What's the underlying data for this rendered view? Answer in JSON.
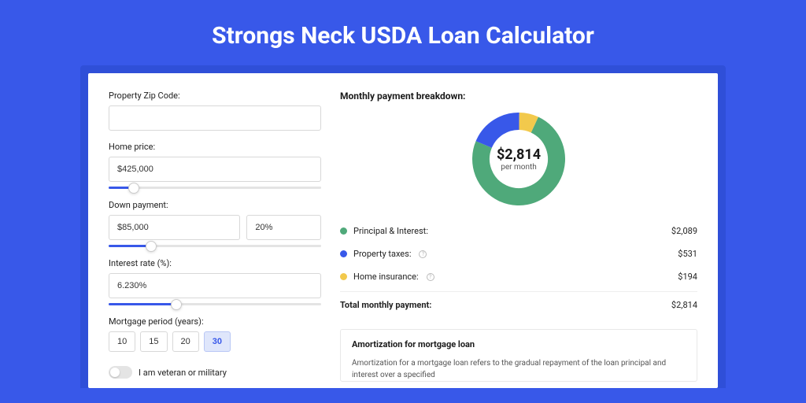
{
  "page": {
    "title": "Strongs Neck USDA Loan Calculator",
    "background_color": "#3858e9",
    "card_shadow_color": "#2f4fd8",
    "card_background": "#ffffff"
  },
  "form": {
    "zip": {
      "label": "Property Zip Code:",
      "value": ""
    },
    "home_price": {
      "label": "Home price:",
      "value": "$425,000",
      "slider_percent": 12
    },
    "down_payment": {
      "label": "Down payment:",
      "amount": "$85,000",
      "percent": "20%",
      "slider_percent": 20
    },
    "interest_rate": {
      "label": "Interest rate (%):",
      "value": "6.230%",
      "slider_percent": 32
    },
    "mortgage_period": {
      "label": "Mortgage period (years):",
      "options": [
        "10",
        "15",
        "20",
        "30"
      ],
      "selected": "30"
    },
    "veteran": {
      "label": "I am veteran or military",
      "checked": false
    }
  },
  "breakdown": {
    "title": "Monthly payment breakdown:",
    "donut": {
      "center_value": "$2,814",
      "center_sub": "per month",
      "size": 118,
      "thickness": 22,
      "segments": [
        {
          "label": "Principal & Interest:",
          "value": "$2,089",
          "color": "#4fa97a",
          "pct": 74.2
        },
        {
          "label": "Property taxes:",
          "value": "$531",
          "color": "#3858e9",
          "pct": 18.9,
          "info": true
        },
        {
          "label": "Home insurance:",
          "value": "$194",
          "color": "#f2c94c",
          "pct": 6.9,
          "info": true
        }
      ]
    },
    "total": {
      "label": "Total monthly payment:",
      "value": "$2,814"
    }
  },
  "amortization": {
    "title": "Amortization for mortgage loan",
    "text": "Amortization for a mortgage loan refers to the gradual repayment of the loan principal and interest over a specified"
  },
  "colors": {
    "slider_fill": "#3858e9",
    "slider_track": "#e4e4e4",
    "active_btn_bg": "#dfe6fb",
    "border": "#d8d8d8"
  }
}
